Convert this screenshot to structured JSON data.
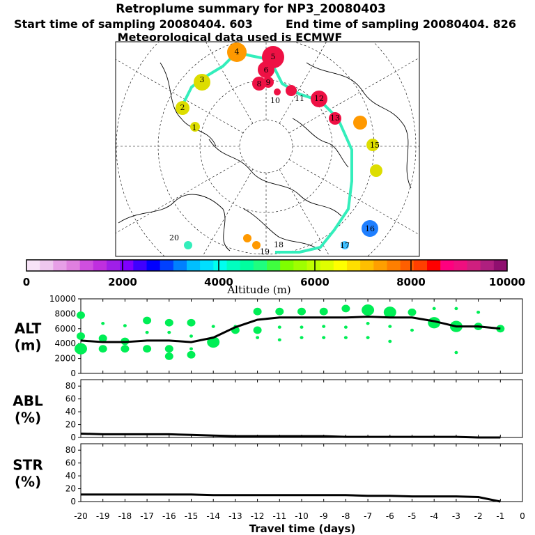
{
  "title": "Retroplume summary for NP3_20080403",
  "start_label": "Start time of sampling 20080404.   603",
  "end_label": "End time of sampling 20080404.   826",
  "met_label": "Meteorological data used is ECMWF",
  "colorbar": {
    "label": "Altitude (m)",
    "ticks": [
      "0",
      "2000",
      "4000",
      "6000",
      "8000",
      "10000"
    ],
    "colors": [
      "#f7e3f7",
      "#efc7ef",
      "#e79fe7",
      "#df7fdf",
      "#cf4fdf",
      "#bf2fdf",
      "#9f1fe7",
      "#7f00ff",
      "#3f00ff",
      "#0000ff",
      "#0040ff",
      "#0080ff",
      "#00bfff",
      "#00dfff",
      "#00ffef",
      "#00ffbf",
      "#00ff9f",
      "#1fff7f",
      "#3fff3f",
      "#7fff00",
      "#9fff00",
      "#bfff00",
      "#dfff00",
      "#ffff00",
      "#ffdf00",
      "#ffbf00",
      "#ff9f00",
      "#ff7f00",
      "#ff5f00",
      "#ff3f00",
      "#ff0000",
      "#ff007f",
      "#ef0f7f",
      "#cf1f7f",
      "#af1f7f",
      "#8f0f6f"
    ]
  },
  "map": {
    "track_labels": [
      "1",
      "2",
      "3",
      "4",
      "5",
      "6",
      "8",
      "9",
      "10",
      "11",
      "12",
      "13",
      "15",
      "16",
      "17",
      "18",
      "19",
      "20"
    ]
  },
  "chart_data": [
    {
      "type": "line",
      "panel": "ALT",
      "ylabel": "ALT (m)",
      "ylabel_line1": "ALT",
      "ylabel_line2": "(m)",
      "ylim": [
        0,
        10000
      ],
      "yticks": [
        "0",
        "2000",
        "4000",
        "6000",
        "8000",
        "10000"
      ],
      "x": [
        -20,
        -19,
        -18,
        -17,
        -16,
        -15,
        -14,
        -13,
        -12,
        -11,
        -10,
        -9,
        -8,
        -7,
        -6,
        -5,
        -4,
        -3,
        -2,
        -1
      ],
      "values": [
        4400,
        4200,
        4200,
        4400,
        4400,
        4200,
        4800,
        6200,
        7200,
        7500,
        7500,
        7500,
        7500,
        7600,
        7500,
        7500,
        7000,
        6300,
        6300,
        6000
      ],
      "clusters": [
        {
          "x": -20,
          "y": [
            7800,
            5000,
            3300
          ],
          "size": [
            2,
            2,
            3
          ]
        },
        {
          "x": -19,
          "y": [
            6700,
            4700,
            3300
          ],
          "size": [
            1,
            2,
            2
          ]
        },
        {
          "x": -18,
          "y": [
            6400,
            4300,
            3300
          ],
          "size": [
            1,
            2,
            2
          ]
        },
        {
          "x": -17,
          "y": [
            7100,
            5500,
            3300
          ],
          "size": [
            2,
            1,
            2
          ]
        },
        {
          "x": -16,
          "y": [
            6800,
            5500,
            3300,
            2300
          ],
          "size": [
            2,
            1,
            2,
            2
          ]
        },
        {
          "x": -15,
          "y": [
            6800,
            5000,
            3300,
            2500
          ],
          "size": [
            2,
            1,
            1,
            2
          ]
        },
        {
          "x": -14,
          "y": [
            6300,
            4200
          ],
          "size": [
            1,
            3
          ]
        },
        {
          "x": -13,
          "y": [
            6300,
            5800
          ],
          "size": [
            1,
            2
          ]
        },
        {
          "x": -12,
          "y": [
            8300,
            5800,
            4800
          ],
          "size": [
            2,
            2,
            1
          ]
        },
        {
          "x": -11,
          "y": [
            8300,
            6200,
            4500
          ],
          "size": [
            2,
            1,
            1
          ]
        },
        {
          "x": -10,
          "y": [
            8300,
            6200,
            4800
          ],
          "size": [
            2,
            1,
            1
          ]
        },
        {
          "x": -9,
          "y": [
            8300,
            6300,
            4800
          ],
          "size": [
            2,
            1,
            1
          ]
        },
        {
          "x": -8,
          "y": [
            8700,
            6200,
            4800
          ],
          "size": [
            2,
            1,
            1
          ]
        },
        {
          "x": -7,
          "y": [
            8500,
            6700,
            4800
          ],
          "size": [
            3,
            1,
            1
          ]
        },
        {
          "x": -6,
          "y": [
            8200,
            6300,
            4300
          ],
          "size": [
            3,
            1,
            1
          ]
        },
        {
          "x": -5,
          "y": [
            8200,
            5800
          ],
          "size": [
            2,
            1
          ]
        },
        {
          "x": -4,
          "y": [
            6800,
            8700
          ],
          "size": [
            3,
            1
          ]
        },
        {
          "x": -3,
          "y": [
            6300,
            8700,
            2800
          ],
          "size": [
            3,
            1,
            1
          ]
        },
        {
          "x": -2,
          "y": [
            6300,
            8200
          ],
          "size": [
            2,
            1
          ]
        },
        {
          "x": -1,
          "y": [
            6000
          ],
          "size": [
            2
          ]
        }
      ]
    },
    {
      "type": "line",
      "panel": "ABL",
      "ylabel": "ABL (%)",
      "ylabel_line1": "ABL",
      "ylabel_line2": "(%)",
      "ylim": [
        0,
        90
      ],
      "yticks": [
        "0",
        "20",
        "40",
        "60",
        "80"
      ],
      "x": [
        -20,
        -19,
        -18,
        -17,
        -16,
        -15,
        -14,
        -13,
        -12,
        -11,
        -10,
        -9,
        -8,
        -7,
        -6,
        -5,
        -4,
        -3,
        -2,
        -1
      ],
      "values": [
        6,
        5,
        5,
        5,
        5,
        4,
        3,
        2,
        2,
        2,
        2,
        2,
        1,
        1,
        1,
        1,
        1,
        1,
        0,
        0
      ]
    },
    {
      "type": "line",
      "panel": "STR",
      "ylabel": "STR (%)",
      "ylabel_line1": "STR",
      "ylabel_line2": "(%)",
      "ylim": [
        0,
        90
      ],
      "yticks": [
        "0",
        "20",
        "40",
        "60",
        "80"
      ],
      "x": [
        -20,
        -19,
        -18,
        -17,
        -16,
        -15,
        -14,
        -13,
        -12,
        -11,
        -10,
        -9,
        -8,
        -7,
        -6,
        -5,
        -4,
        -3,
        -2,
        -1
      ],
      "values": [
        11,
        11,
        11,
        11,
        11,
        11,
        10,
        10,
        10,
        10,
        10,
        10,
        10,
        9,
        9,
        8,
        8,
        8,
        7,
        0
      ]
    }
  ],
  "xaxis": {
    "label": "Travel time (days)",
    "ticks": [
      "-20",
      "-19",
      "-18",
      "-17",
      "-16",
      "-15",
      "-14",
      "-13",
      "-12",
      "-11",
      "-10",
      "-9",
      "-8",
      "-7",
      "-6",
      "-5",
      "-4",
      "-3",
      "-2",
      "-1",
      "0"
    ]
  },
  "colors": {
    "line": "#000000",
    "point": "#00ee55",
    "track_yellow": "#dddd00",
    "track_cyan": "#33eebb",
    "track_orange": "#ff9900",
    "track_red": "#ee1144"
  }
}
